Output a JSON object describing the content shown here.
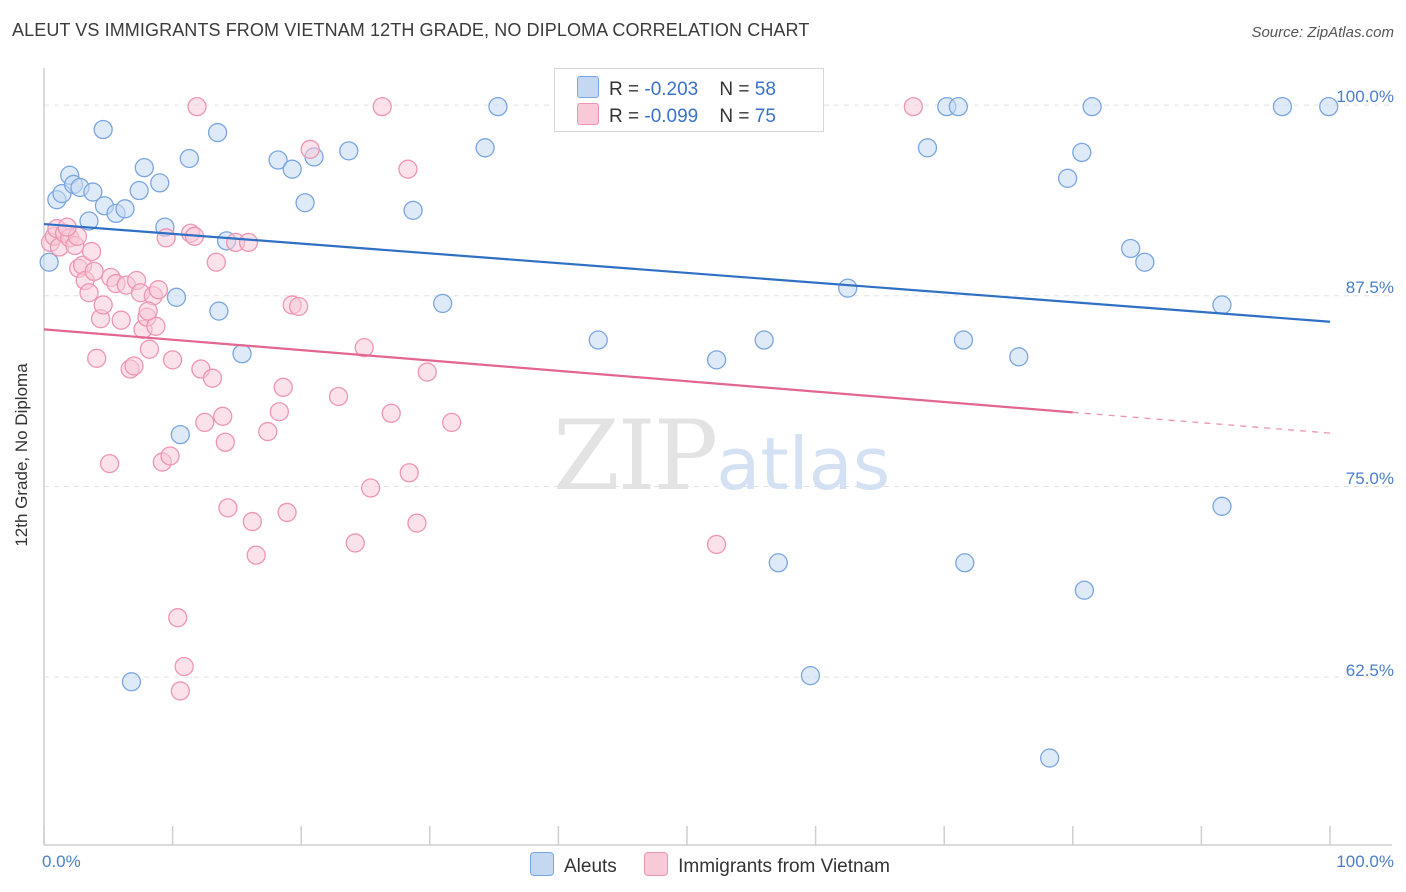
{
  "header": {
    "title": "ALEUT VS IMMIGRANTS FROM VIETNAM 12TH GRADE, NO DIPLOMA CORRELATION CHART",
    "source": "Source: ZipAtlas.com"
  },
  "watermark": {
    "zip": "ZIP",
    "atlas": "atlas"
  },
  "legend": {
    "aleuts": {
      "r_label": "R = ",
      "r_value": "-0.203",
      "n_label": "N = ",
      "n_value": "58"
    },
    "vietnam": {
      "r_label": "R = ",
      "r_value": "-0.099",
      "n_label": "N = ",
      "n_value": "75"
    }
  },
  "colors": {
    "aleuts_fill": "#c5d8f2",
    "aleuts_stroke": "#7aa6e0",
    "aleuts_line": "#2f6fc4",
    "vietnam_fill": "#f8c9d7",
    "vietnam_stroke": "#ee95b2",
    "vietnam_line": "#e36690"
  },
  "chart_data": {
    "type": "scatter",
    "title": "ALEUT VS IMMIGRANTS FROM VIETNAM 12TH GRADE, NO DIPLOMA CORRELATION CHART",
    "xlabel": "",
    "ylabel": "12th Grade, No Diploma",
    "xlim": [
      0,
      100
    ],
    "ylim": [
      51.5,
      102.3
    ],
    "x_ticks": [
      "0.0%",
      "100.0%"
    ],
    "y_ticks": [
      {
        "value": 100,
        "label": "100.0%"
      },
      {
        "value": 87.5,
        "label": "87.5%"
      },
      {
        "value": 75,
        "label": "75.0%"
      },
      {
        "value": 62.5,
        "label": "62.5%"
      }
    ],
    "grid": "horizontal dashed",
    "legend": "bottom-center",
    "series": [
      {
        "name": "Aleuts",
        "trend": {
          "x": [
            0,
            100
          ],
          "y": [
            92.2,
            85.8
          ],
          "dashed_from": null
        },
        "points": [
          [
            0.4,
            89.7
          ],
          [
            1.0,
            93.8
          ],
          [
            1.4,
            94.2
          ],
          [
            2.0,
            95.4
          ],
          [
            2.3,
            94.8
          ],
          [
            2.8,
            94.6
          ],
          [
            3.5,
            92.4
          ],
          [
            3.8,
            94.3
          ],
          [
            4.6,
            98.4
          ],
          [
            4.7,
            93.4
          ],
          [
            5.6,
            92.9
          ],
          [
            6.3,
            93.2
          ],
          [
            7.4,
            94.4
          ],
          [
            7.8,
            95.9
          ],
          [
            9.0,
            94.9
          ],
          [
            9.4,
            92.0
          ],
          [
            10.3,
            87.4
          ],
          [
            10.6,
            78.4
          ],
          [
            11.3,
            96.5
          ],
          [
            13.5,
            98.2
          ],
          [
            13.6,
            86.5
          ],
          [
            14.2,
            91.1
          ],
          [
            15.4,
            83.7
          ],
          [
            18.2,
            96.4
          ],
          [
            19.3,
            95.8
          ],
          [
            20.3,
            93.6
          ],
          [
            21.0,
            96.6
          ],
          [
            23.7,
            97.0
          ],
          [
            28.7,
            93.1
          ],
          [
            31.0,
            87.0
          ],
          [
            34.3,
            97.2
          ],
          [
            35.3,
            99.9
          ],
          [
            43.1,
            84.6
          ],
          [
            47.3,
            99.9
          ],
          [
            52.3,
            83.3
          ],
          [
            55.5,
            99.9
          ],
          [
            56.0,
            84.6
          ],
          [
            57.1,
            70.0
          ],
          [
            59.6,
            62.6
          ],
          [
            62.5,
            88.0
          ],
          [
            68.7,
            97.2
          ],
          [
            70.2,
            99.9
          ],
          [
            71.1,
            99.9
          ],
          [
            71.5,
            84.6
          ],
          [
            71.6,
            70.0
          ],
          [
            75.8,
            83.5
          ],
          [
            78.2,
            57.2
          ],
          [
            79.6,
            95.2
          ],
          [
            80.7,
            96.9
          ],
          [
            80.9,
            68.2
          ],
          [
            81.5,
            99.9
          ],
          [
            84.5,
            90.6
          ],
          [
            85.6,
            89.7
          ],
          [
            91.6,
            86.9
          ],
          [
            91.6,
            73.7
          ],
          [
            96.3,
            99.9
          ],
          [
            99.9,
            99.9
          ],
          [
            6.8,
            62.2
          ]
        ]
      },
      {
        "name": "Immigrants from Vietnam",
        "trend": {
          "x": [
            0,
            100
          ],
          "y": [
            85.3,
            78.5
          ],
          "dashed_from": 80
        },
        "points": [
          [
            0.5,
            91.0
          ],
          [
            0.8,
            91.4
          ],
          [
            1.0,
            91.9
          ],
          [
            1.2,
            90.7
          ],
          [
            1.6,
            91.6
          ],
          [
            2.0,
            91.3
          ],
          [
            2.4,
            90.8
          ],
          [
            2.7,
            89.3
          ],
          [
            3.0,
            89.5
          ],
          [
            3.2,
            88.5
          ],
          [
            3.5,
            87.7
          ],
          [
            3.7,
            90.4
          ],
          [
            3.9,
            89.1
          ],
          [
            4.1,
            83.4
          ],
          [
            4.4,
            86.0
          ],
          [
            4.6,
            86.9
          ],
          [
            5.2,
            88.7
          ],
          [
            5.6,
            88.3
          ],
          [
            6.0,
            85.9
          ],
          [
            6.4,
            88.2
          ],
          [
            6.7,
            82.7
          ],
          [
            7.0,
            82.9
          ],
          [
            7.2,
            88.5
          ],
          [
            7.5,
            87.7
          ],
          [
            7.7,
            85.3
          ],
          [
            8.0,
            86.1
          ],
          [
            8.2,
            84.0
          ],
          [
            8.5,
            87.5
          ],
          [
            8.7,
            85.5
          ],
          [
            8.9,
            87.9
          ],
          [
            9.2,
            76.6
          ],
          [
            9.5,
            91.3
          ],
          [
            9.8,
            77.0
          ],
          [
            10.0,
            83.3
          ],
          [
            10.4,
            66.4
          ],
          [
            10.6,
            61.6
          ],
          [
            10.9,
            63.2
          ],
          [
            11.4,
            91.6
          ],
          [
            11.7,
            91.4
          ],
          [
            11.9,
            99.9
          ],
          [
            12.2,
            82.7
          ],
          [
            12.5,
            79.2
          ],
          [
            13.1,
            82.1
          ],
          [
            13.4,
            89.7
          ],
          [
            13.9,
            79.6
          ],
          [
            14.1,
            77.9
          ],
          [
            14.3,
            73.6
          ],
          [
            14.9,
            91.0
          ],
          [
            16.2,
            72.7
          ],
          [
            16.5,
            70.5
          ],
          [
            17.4,
            78.6
          ],
          [
            18.3,
            79.9
          ],
          [
            18.6,
            81.5
          ],
          [
            18.9,
            73.3
          ],
          [
            19.3,
            86.9
          ],
          [
            19.8,
            86.8
          ],
          [
            20.7,
            97.1
          ],
          [
            22.9,
            80.9
          ],
          [
            24.2,
            71.3
          ],
          [
            24.9,
            84.1
          ],
          [
            25.4,
            74.9
          ],
          [
            26.3,
            99.9
          ],
          [
            27.0,
            79.8
          ],
          [
            28.3,
            95.8
          ],
          [
            28.4,
            75.9
          ],
          [
            29.0,
            72.6
          ],
          [
            29.8,
            82.5
          ],
          [
            31.7,
            79.2
          ],
          [
            5.1,
            76.5
          ],
          [
            52.3,
            71.2
          ],
          [
            67.6,
            99.9
          ],
          [
            8.1,
            86.5
          ],
          [
            15.9,
            91.0
          ],
          [
            2.6,
            91.4
          ],
          [
            1.8,
            92.0
          ]
        ]
      }
    ]
  },
  "bottom_legend": {
    "aleuts": "Aleuts",
    "vietnam": "Immigrants from Vietnam"
  }
}
